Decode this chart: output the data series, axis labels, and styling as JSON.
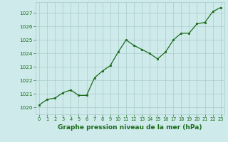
{
  "x": [
    0,
    1,
    2,
    3,
    4,
    5,
    6,
    7,
    8,
    9,
    10,
    11,
    12,
    13,
    14,
    15,
    16,
    17,
    18,
    19,
    20,
    21,
    22,
    23
  ],
  "y": [
    1020.2,
    1020.6,
    1020.7,
    1021.1,
    1021.3,
    1020.9,
    1020.9,
    1022.2,
    1022.7,
    1023.1,
    1024.1,
    1025.0,
    1024.6,
    1024.3,
    1024.0,
    1023.6,
    1024.1,
    1025.0,
    1025.5,
    1025.5,
    1026.2,
    1026.3,
    1027.1,
    1027.4
  ],
  "line_color": "#1a6b1a",
  "marker_color": "#1a6b1a",
  "bg_color": "#ceeaea",
  "grid_color": "#b0d0d0",
  "xlabel": "Graphe pression niveau de la mer (hPa)",
  "xlabel_color": "#1a6b1a",
  "tick_color": "#1a6b1a",
  "ylim_min": 1019.5,
  "ylim_max": 1027.8,
  "xlim_min": -0.5,
  "xlim_max": 23.5,
  "yticks": [
    1020,
    1021,
    1022,
    1023,
    1024,
    1025,
    1026,
    1027
  ],
  "xticks": [
    0,
    1,
    2,
    3,
    4,
    5,
    6,
    7,
    8,
    9,
    10,
    11,
    12,
    13,
    14,
    15,
    16,
    17,
    18,
    19,
    20,
    21,
    22,
    23
  ]
}
